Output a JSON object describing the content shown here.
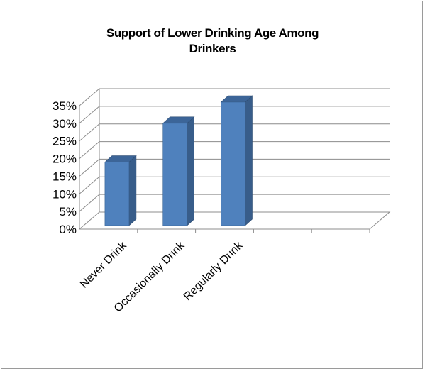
{
  "chart_data": {
    "type": "bar",
    "title": "Support of Lower Drinking Age Among\nDrinkers",
    "categories": [
      "Never Drink",
      "Occasionally Drink",
      "Regularly Drink",
      "",
      ""
    ],
    "values": [
      18,
      29,
      35,
      null,
      null
    ],
    "yticks": [
      "0%",
      "5%",
      "10%",
      "15%",
      "20%",
      "25%",
      "30%",
      "35%"
    ],
    "ylim": [
      0,
      35
    ],
    "ystep": 5,
    "grid": true,
    "legend": "none",
    "colors": {
      "bar_front": "#4f81bd",
      "bar_side": "#385d8a",
      "bar_top": "#3c6598",
      "gridline": "#8c8c8c",
      "axis": "#8c8c8c"
    }
  }
}
